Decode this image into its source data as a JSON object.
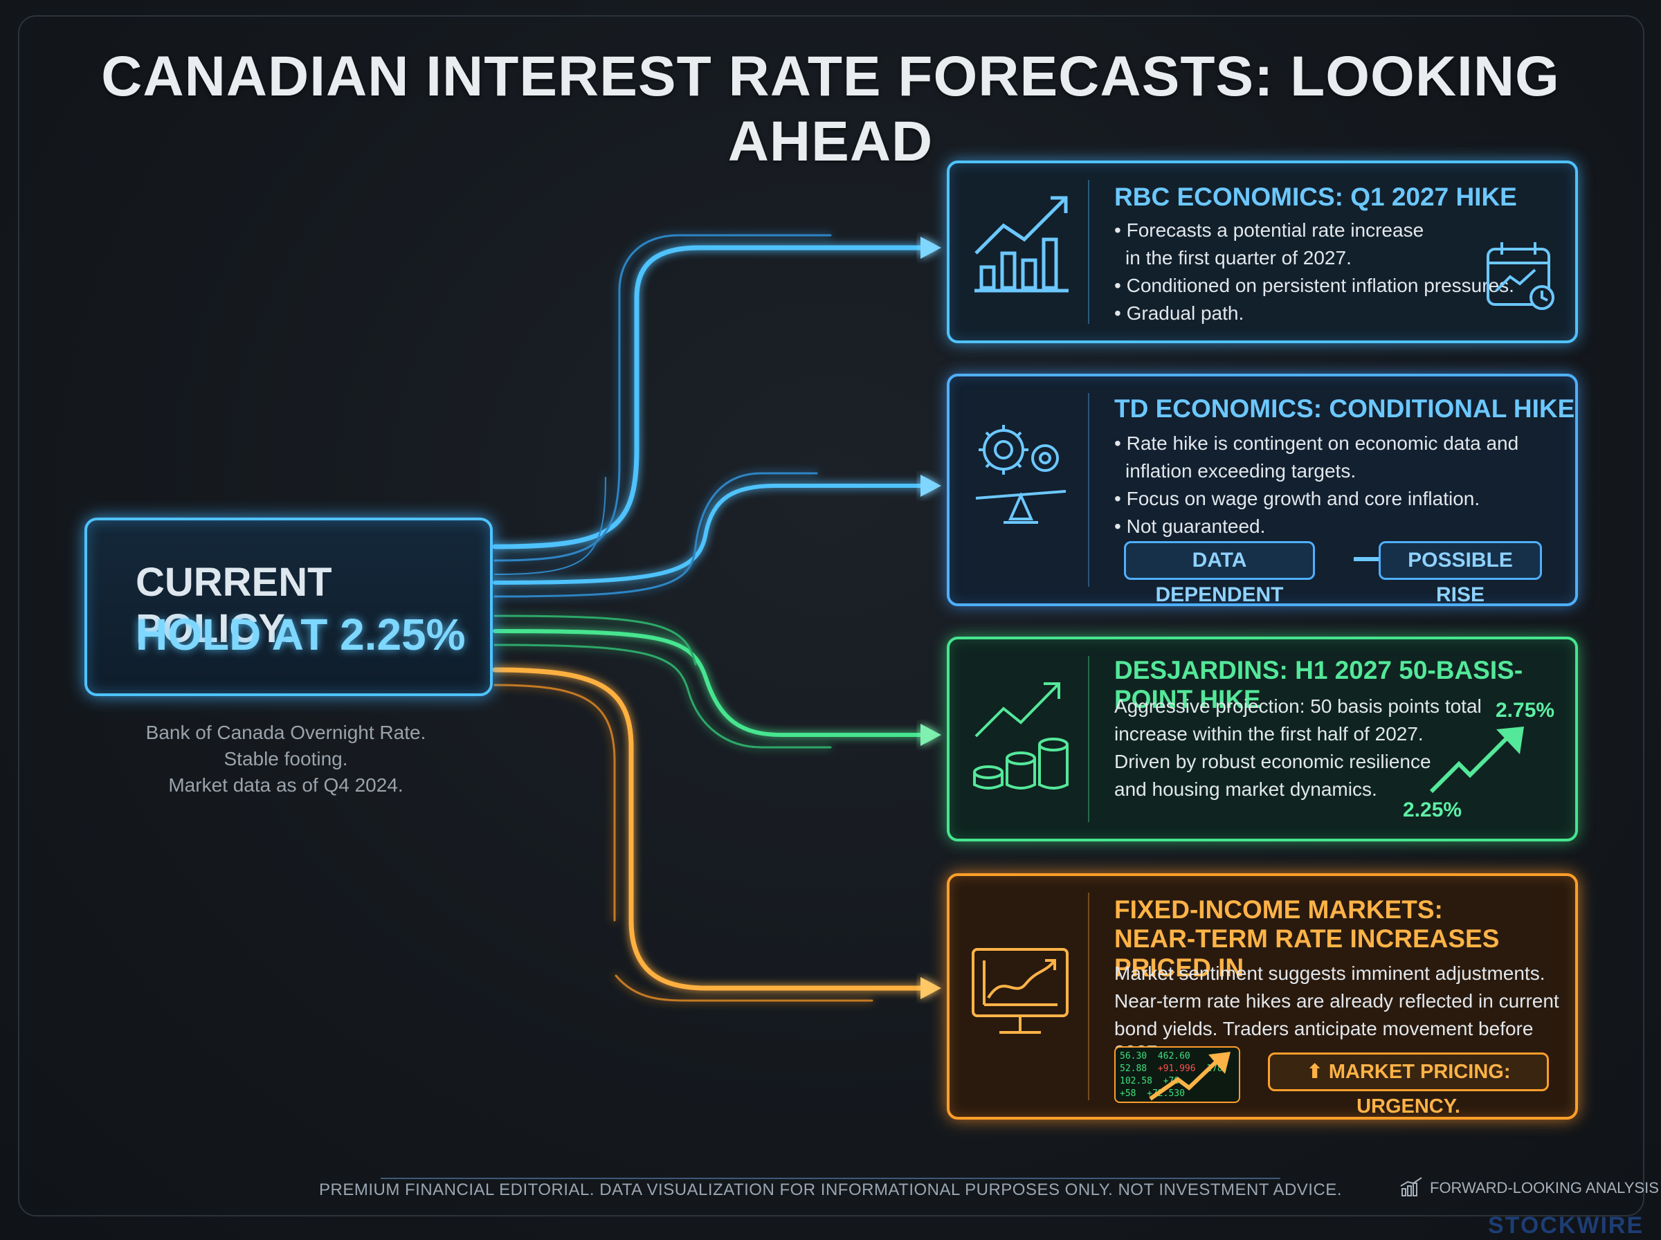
{
  "title": "CANADIAN INTEREST RATE FORECASTS: LOOKING AHEAD",
  "policy": {
    "line1": "CURRENT POLICY:",
    "line2": "HOLD AT 2.25%",
    "notes": [
      "Bank of Canada Overnight Rate.",
      "Stable footing.",
      "Market data as of Q4 2024."
    ]
  },
  "cards": {
    "rbc": {
      "heading": "RBC ECONOMICS: Q1 2027 HIKE",
      "bullets": [
        "Forecasts a potential rate increase",
        "in the first quarter of 2027.",
        "Conditioned on persistent inflation pressures.",
        "Gradual path."
      ],
      "icon": "bar-chart-arrow-icon",
      "side_icon": "calendar-chart-icon"
    },
    "td": {
      "heading": "TD ECONOMICS: CONDITIONAL HIKE",
      "bullets": [
        "Rate hike is contingent on economic data and",
        "inflation exceeding targets.",
        "Focus on wage growth and core inflation.",
        "Not guaranteed."
      ],
      "pill_left": "DATA DEPENDENT",
      "pill_right": "POSSIBLE RISE",
      "icon": "gears-balance-icon"
    },
    "desjardins": {
      "heading": "DESJARDINS: H1 2027 50-BASIS-POINT HIKE",
      "paragraphs": [
        "Aggressive projection: 50 basis points total",
        "increase within the first half of 2027.",
        "Driven by robust economic resilience",
        "and housing market dynamics."
      ],
      "rate_high": "2.75%",
      "rate_low": "2.25%",
      "icon": "coins-arrow-icon"
    },
    "fixed_income": {
      "heading_line1": "FIXED-INCOME MARKETS:",
      "heading_line2": "NEAR-TERM RATE INCREASES PRICED IN",
      "paragraphs": [
        "Market sentiment suggests imminent adjustments.",
        "Near-term rate hikes are already reflected in current",
        "bond yields. Traders anticipate movement before 2027."
      ],
      "urgency": "MARKET PRICING: URGENCY.",
      "ticker_values": [
        "56.30",
        "462.60",
        "52.88",
        "+91.996",
        "178.",
        "102.58",
        "+78.",
        "+58",
        "+72.530"
      ],
      "icon": "monitor-chart-icon"
    }
  },
  "footer": {
    "disclaimer": "PREMIUM FINANCIAL EDITORIAL. DATA VISUALIZATION FOR INFORMATIONAL PURPOSES ONLY. NOT INVESTMENT ADVICE.",
    "analysis_label": "FORWARD-LOOKING ANALYSIS",
    "brand": "STOCKWIRE"
  },
  "colors": {
    "blue": "#4fc3ff",
    "green": "#46e58f",
    "orange": "#ff9f2a",
    "background": "#14181d"
  }
}
